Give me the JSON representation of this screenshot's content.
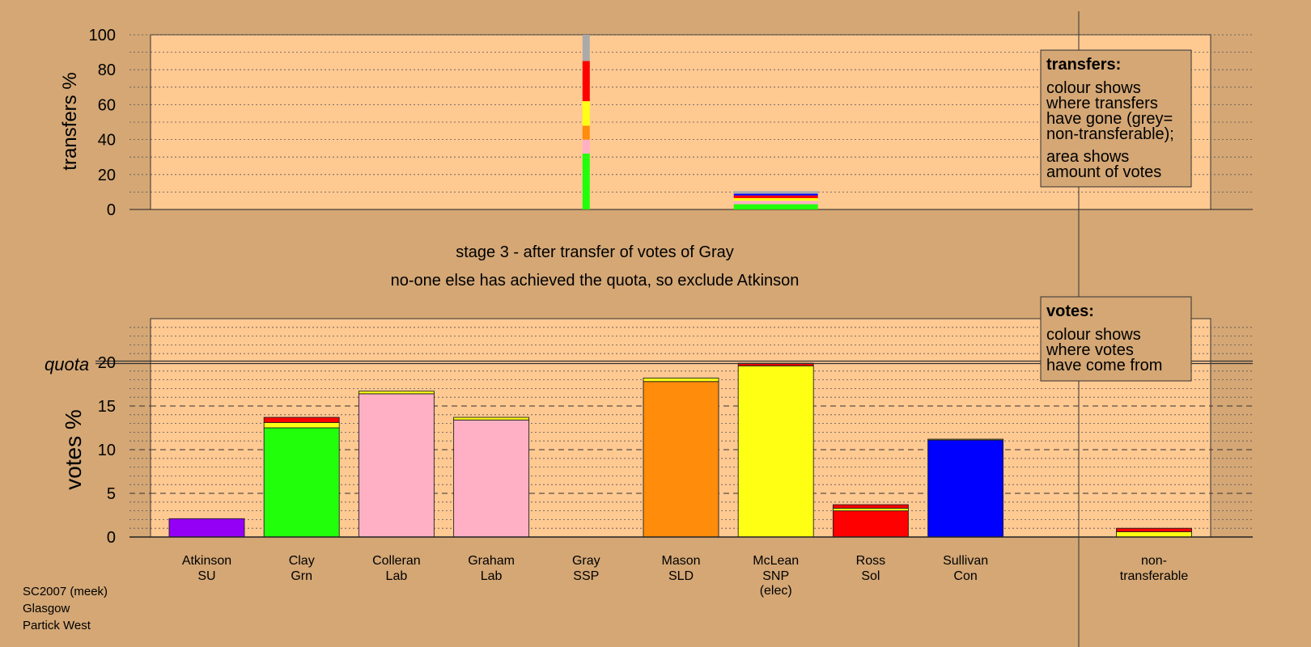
{
  "chart_data": {
    "type": "bar",
    "stage_title": "stage 3 - after transfer of votes of Gray",
    "stage_subtitle": "no-one else has achieved the quota, so exclude Atkinson",
    "colors": {
      "background": "#d4a775",
      "plot": "#ffc992",
      "SU": "#9400f5",
      "Grn": "#22ff0a",
      "Lab": "#ffb0c4",
      "SSP": "#ff0000",
      "SLD": "#ff8c0a",
      "SNP": "#ffff14",
      "Sol": "#ff0000",
      "Con": "#0000ff",
      "nontransferable": "#aaaaaa"
    },
    "transfers_panel": {
      "ylabel": "transfers %",
      "yticks": [
        "0",
        "20",
        "40",
        "60",
        "80",
        "100"
      ],
      "ylim": [
        0,
        100
      ],
      "legend_title": "transfers:",
      "legend_lines_a": [
        "colour shows",
        "where transfers",
        "have gone (grey=",
        "non-transferable);"
      ],
      "legend_lines_b": [
        "area shows",
        "amount of votes"
      ],
      "bars": [
        {
          "candidate": "Gray",
          "segments": [
            {
              "party": "Grn",
              "value": 32
            },
            {
              "party": "Lab",
              "value": 8
            },
            {
              "party": "SLD",
              "value": 8
            },
            {
              "party": "SNP",
              "value": 14
            },
            {
              "party": "SSP",
              "value": 23
            },
            {
              "party": "nontransferable",
              "value": 15
            }
          ]
        },
        {
          "candidate": "McLean",
          "segments": [
            {
              "party": "Grn",
              "value": 3
            },
            {
              "party": "Lab",
              "value": 2
            },
            {
              "party": "SNP",
              "value": 1.5
            },
            {
              "party": "Sol",
              "value": 1.5
            },
            {
              "party": "Con",
              "value": 1
            },
            {
              "party": "nontransferable",
              "value": 1.5
            }
          ]
        }
      ]
    },
    "votes_panel": {
      "ylabel": "votes %",
      "quota_label": "quota",
      "quota": 20,
      "yticks": [
        "0",
        "5",
        "10",
        "15",
        "20"
      ],
      "ylim": [
        0,
        25
      ],
      "legend_title": "votes:",
      "legend_lines": [
        "colour shows",
        "where votes",
        "have come from"
      ],
      "candidates": [
        {
          "name": "Atkinson",
          "party": "SU",
          "note": "",
          "segments": [
            {
              "party": "SU",
              "value": 2.1
            }
          ]
        },
        {
          "name": "Clay",
          "party": "Grn",
          "note": "",
          "segments": [
            {
              "party": "Grn",
              "value": 12.5
            },
            {
              "party": "SNP",
              "value": 0.6
            },
            {
              "party": "SSP",
              "value": 0.6
            }
          ]
        },
        {
          "name": "Colleran",
          "party": "Lab",
          "note": "",
          "segments": [
            {
              "party": "Lab",
              "value": 16.4
            },
            {
              "party": "SNP",
              "value": 0.3
            }
          ]
        },
        {
          "name": "Graham",
          "party": "Lab",
          "note": "",
          "segments": [
            {
              "party": "Lab",
              "value": 13.4
            },
            {
              "party": "SNP",
              "value": 0.3
            }
          ]
        },
        {
          "name": "Gray",
          "party": "SSP",
          "note": "",
          "segments": []
        },
        {
          "name": "Mason",
          "party": "SLD",
          "note": "",
          "segments": [
            {
              "party": "SLD",
              "value": 17.8
            },
            {
              "party": "SNP",
              "value": 0.4
            }
          ]
        },
        {
          "name": "McLean",
          "party": "SNP",
          "note": "(elec)",
          "segments": [
            {
              "party": "SNP",
              "value": 19.6
            },
            {
              "party": "SSP",
              "value": 0.3
            }
          ]
        },
        {
          "name": "Ross",
          "party": "Sol",
          "note": "",
          "segments": [
            {
              "party": "Sol",
              "value": 3.0
            },
            {
              "party": "SNP",
              "value": 0.3
            },
            {
              "party": "SSP",
              "value": 0.4
            }
          ]
        },
        {
          "name": "Sullivan",
          "party": "Con",
          "note": "",
          "segments": [
            {
              "party": "Con",
              "value": 11.1
            },
            {
              "party": "SNP",
              "value": 0.1
            }
          ]
        }
      ],
      "nontransferable": {
        "name": "non-",
        "note": "transferable",
        "segments": [
          {
            "party": "SNP",
            "value": 0.6
          },
          {
            "party": "SSP",
            "value": 0.4
          }
        ]
      }
    }
  },
  "footer": {
    "line1": "SC2007 (meek)",
    "line2": "Glasgow",
    "line3": "Partick West"
  }
}
